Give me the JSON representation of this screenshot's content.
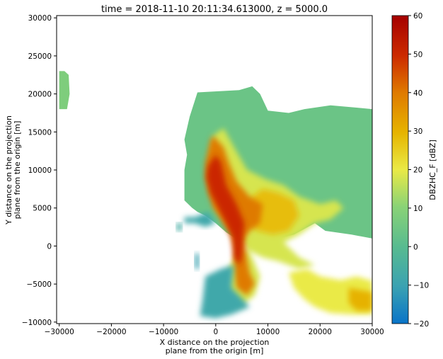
{
  "chart_data": {
    "type": "heatmap",
    "title": "time = 2018-11-10 20:11:34.613000, z = 5000.0",
    "xlabel": [
      "X distance on the projection",
      "plane from the origin [m]"
    ],
    "ylabel": [
      "Y distance on the projection",
      "plane from the origin [m]"
    ],
    "xlim": [
      -30500,
      30000
    ],
    "ylim": [
      -10200,
      30300
    ],
    "x_ticks": [
      -30000,
      -20000,
      -10000,
      0,
      10000,
      20000,
      30000
    ],
    "y_ticks": [
      -10000,
      -5000,
      0,
      5000,
      10000,
      15000,
      20000,
      25000,
      30000
    ],
    "x_tick_labels": [
      "−30000",
      "−20000",
      "−10000",
      "0",
      "10000",
      "20000",
      "30000"
    ],
    "y_tick_labels": [
      "−10000",
      "−5000",
      "0",
      "5000",
      "10000",
      "15000",
      "20000",
      "25000",
      "30000"
    ],
    "colorbar": {
      "label": "DBZHC_F [dBZ]",
      "range": [
        -20,
        60
      ],
      "ticks": [
        -20,
        -10,
        0,
        10,
        20,
        30,
        40,
        50,
        60
      ],
      "tick_labels": [
        "−20",
        "−10",
        "0",
        "10",
        "20",
        "30",
        "40",
        "50",
        "60"
      ],
      "colormap": "HomeyerRainbow"
    },
    "regions": [
      {
        "polygon": [
          [
            -29000,
            23000
          ],
          [
            -28200,
            22500
          ],
          [
            -28000,
            20000
          ],
          [
            -28500,
            18000
          ],
          [
            -30000,
            18000
          ],
          [
            -30000,
            23000
          ]
        ],
        "value": 8
      },
      {
        "polygon": [
          [
            -3500,
            20200
          ],
          [
            4500,
            20500
          ],
          [
            7000,
            21000
          ],
          [
            8500,
            20000
          ],
          [
            10000,
            17800
          ],
          [
            14000,
            17500
          ],
          [
            17000,
            18000
          ],
          [
            22000,
            18500
          ],
          [
            27000,
            18200
          ],
          [
            30000,
            18000
          ],
          [
            30000,
            1000
          ],
          [
            26000,
            1500
          ],
          [
            21000,
            2000
          ],
          [
            19000,
            3000
          ],
          [
            15000,
            1500
          ],
          [
            12000,
            1000
          ],
          [
            9000,
            500
          ],
          [
            6500,
            700
          ],
          [
            4000,
            900
          ],
          [
            2000,
            1800
          ],
          [
            0,
            3000
          ],
          [
            -2000,
            4000
          ],
          [
            -3500,
            4500
          ],
          [
            -4500,
            5000
          ],
          [
            -6000,
            6000
          ],
          [
            -6000,
            10000
          ],
          [
            -5500,
            12000
          ],
          [
            -6000,
            14000
          ],
          [
            -5000,
            17000
          ]
        ],
        "value": 4
      },
      {
        "polygon": [
          [
            1500,
            15500
          ],
          [
            3500,
            13000
          ],
          [
            6000,
            10000
          ],
          [
            9500,
            8800
          ],
          [
            13000,
            8000
          ],
          [
            16000,
            6500
          ],
          [
            20000,
            5500
          ],
          [
            23000,
            6000
          ],
          [
            24500,
            5000
          ],
          [
            22000,
            3500
          ],
          [
            19000,
            3000
          ],
          [
            16000,
            1500
          ],
          [
            13000,
            500
          ],
          [
            16000,
            -1500
          ],
          [
            19000,
            -2500
          ],
          [
            16000,
            -3000
          ],
          [
            12000,
            -2000
          ],
          [
            9000,
            -1500
          ],
          [
            6000,
            -500
          ],
          [
            4000,
            -1000
          ],
          [
            2500,
            -3000
          ],
          [
            2000,
            -6000
          ],
          [
            4500,
            -8000
          ],
          [
            7500,
            -6500
          ],
          [
            8500,
            -4000
          ],
          [
            7000,
            -1500
          ],
          [
            4000,
            1500
          ],
          [
            2000,
            3000
          ],
          [
            0,
            5000
          ],
          [
            -500,
            8000
          ],
          [
            -1000,
            12000
          ],
          [
            -500,
            14500
          ]
        ],
        "value": 18
      },
      {
        "polygon": [
          [
            9000,
            7500
          ],
          [
            12000,
            7000
          ],
          [
            15000,
            6000
          ],
          [
            16000,
            4000
          ],
          [
            14000,
            2000
          ],
          [
            11000,
            1500
          ],
          [
            8000,
            2000
          ],
          [
            6000,
            3000
          ],
          [
            5500,
            5000
          ],
          [
            7000,
            6500
          ]
        ],
        "value": 28
      },
      {
        "polygon": [
          [
            -500,
            14500
          ],
          [
            1500,
            13000
          ],
          [
            2500,
            11000
          ],
          [
            4000,
            8500
          ],
          [
            6500,
            6500
          ],
          [
            9000,
            5500
          ],
          [
            8500,
            3000
          ],
          [
            6500,
            2000
          ],
          [
            5500,
            1000
          ],
          [
            5800,
            -1000
          ],
          [
            6500,
            -3500
          ],
          [
            7500,
            -5000
          ],
          [
            6000,
            -6500
          ],
          [
            4000,
            -5500
          ],
          [
            3500,
            -3000
          ],
          [
            3500,
            -500
          ],
          [
            2800,
            1500
          ],
          [
            1000,
            3500
          ],
          [
            -500,
            5000
          ],
          [
            -1500,
            7000
          ],
          [
            -2000,
            9000
          ],
          [
            -2000,
            11000
          ],
          [
            -1500,
            12500
          ],
          [
            -1000,
            14000
          ]
        ],
        "value": 40
      },
      {
        "polygon": [
          [
            0,
            12000
          ],
          [
            1000,
            11000
          ],
          [
            2000,
            8000
          ],
          [
            4000,
            5500
          ],
          [
            5500,
            3000
          ],
          [
            5200,
            1000
          ],
          [
            5000,
            -1500
          ],
          [
            4500,
            -2500
          ],
          [
            3500,
            -1500
          ],
          [
            3300,
            1000
          ],
          [
            2000,
            3000
          ],
          [
            500,
            5000
          ],
          [
            -1000,
            7000
          ],
          [
            -1800,
            9000
          ],
          [
            -1500,
            10500
          ]
        ],
        "value": 50
      },
      {
        "polygon": [
          [
            -6000,
            3800
          ],
          [
            -4000,
            3800
          ],
          [
            -1500,
            4500
          ],
          [
            0,
            3000
          ],
          [
            -2000,
            2500
          ],
          [
            -4000,
            3000
          ],
          [
            -6000,
            3000
          ]
        ],
        "value": -8
      },
      {
        "polygon": [
          [
            -7500,
            3000
          ],
          [
            -6500,
            3000
          ],
          [
            -6500,
            2000
          ],
          [
            -7500,
            2000
          ]
        ],
        "value": -6
      },
      {
        "polygon": [
          [
            -4000,
            -1000
          ],
          [
            -3200,
            -1000
          ],
          [
            -3200,
            -3000
          ],
          [
            -4000,
            -3000
          ]
        ],
        "value": -10
      },
      {
        "polygon": [
          [
            -2000,
            -4000
          ],
          [
            1000,
            -3000
          ],
          [
            3500,
            -2500
          ],
          [
            3000,
            -5500
          ],
          [
            4500,
            -6500
          ],
          [
            6500,
            -8000
          ],
          [
            3000,
            -9000
          ],
          [
            0,
            -9500
          ],
          [
            -3000,
            -9200
          ],
          [
            -2500,
            -7000
          ]
        ],
        "value": -8
      },
      {
        "polygon": [
          [
            14000,
            -3500
          ],
          [
            17500,
            -3000
          ],
          [
            20000,
            -4000
          ],
          [
            24000,
            -4500
          ],
          [
            27000,
            -4000
          ],
          [
            29500,
            -4500
          ],
          [
            30000,
            -4500
          ],
          [
            30000,
            -9000
          ],
          [
            26000,
            -9000
          ],
          [
            22000,
            -8800
          ],
          [
            19000,
            -8000
          ],
          [
            17000,
            -7000
          ],
          [
            15000,
            -5500
          ]
        ],
        "value": 20
      },
      {
        "polygon": [
          [
            25500,
            -5500
          ],
          [
            29500,
            -6000
          ],
          [
            30000,
            -6000
          ],
          [
            30000,
            -8500
          ],
          [
            27000,
            -8500
          ],
          [
            25500,
            -7500
          ]
        ],
        "value": 30
      }
    ]
  }
}
